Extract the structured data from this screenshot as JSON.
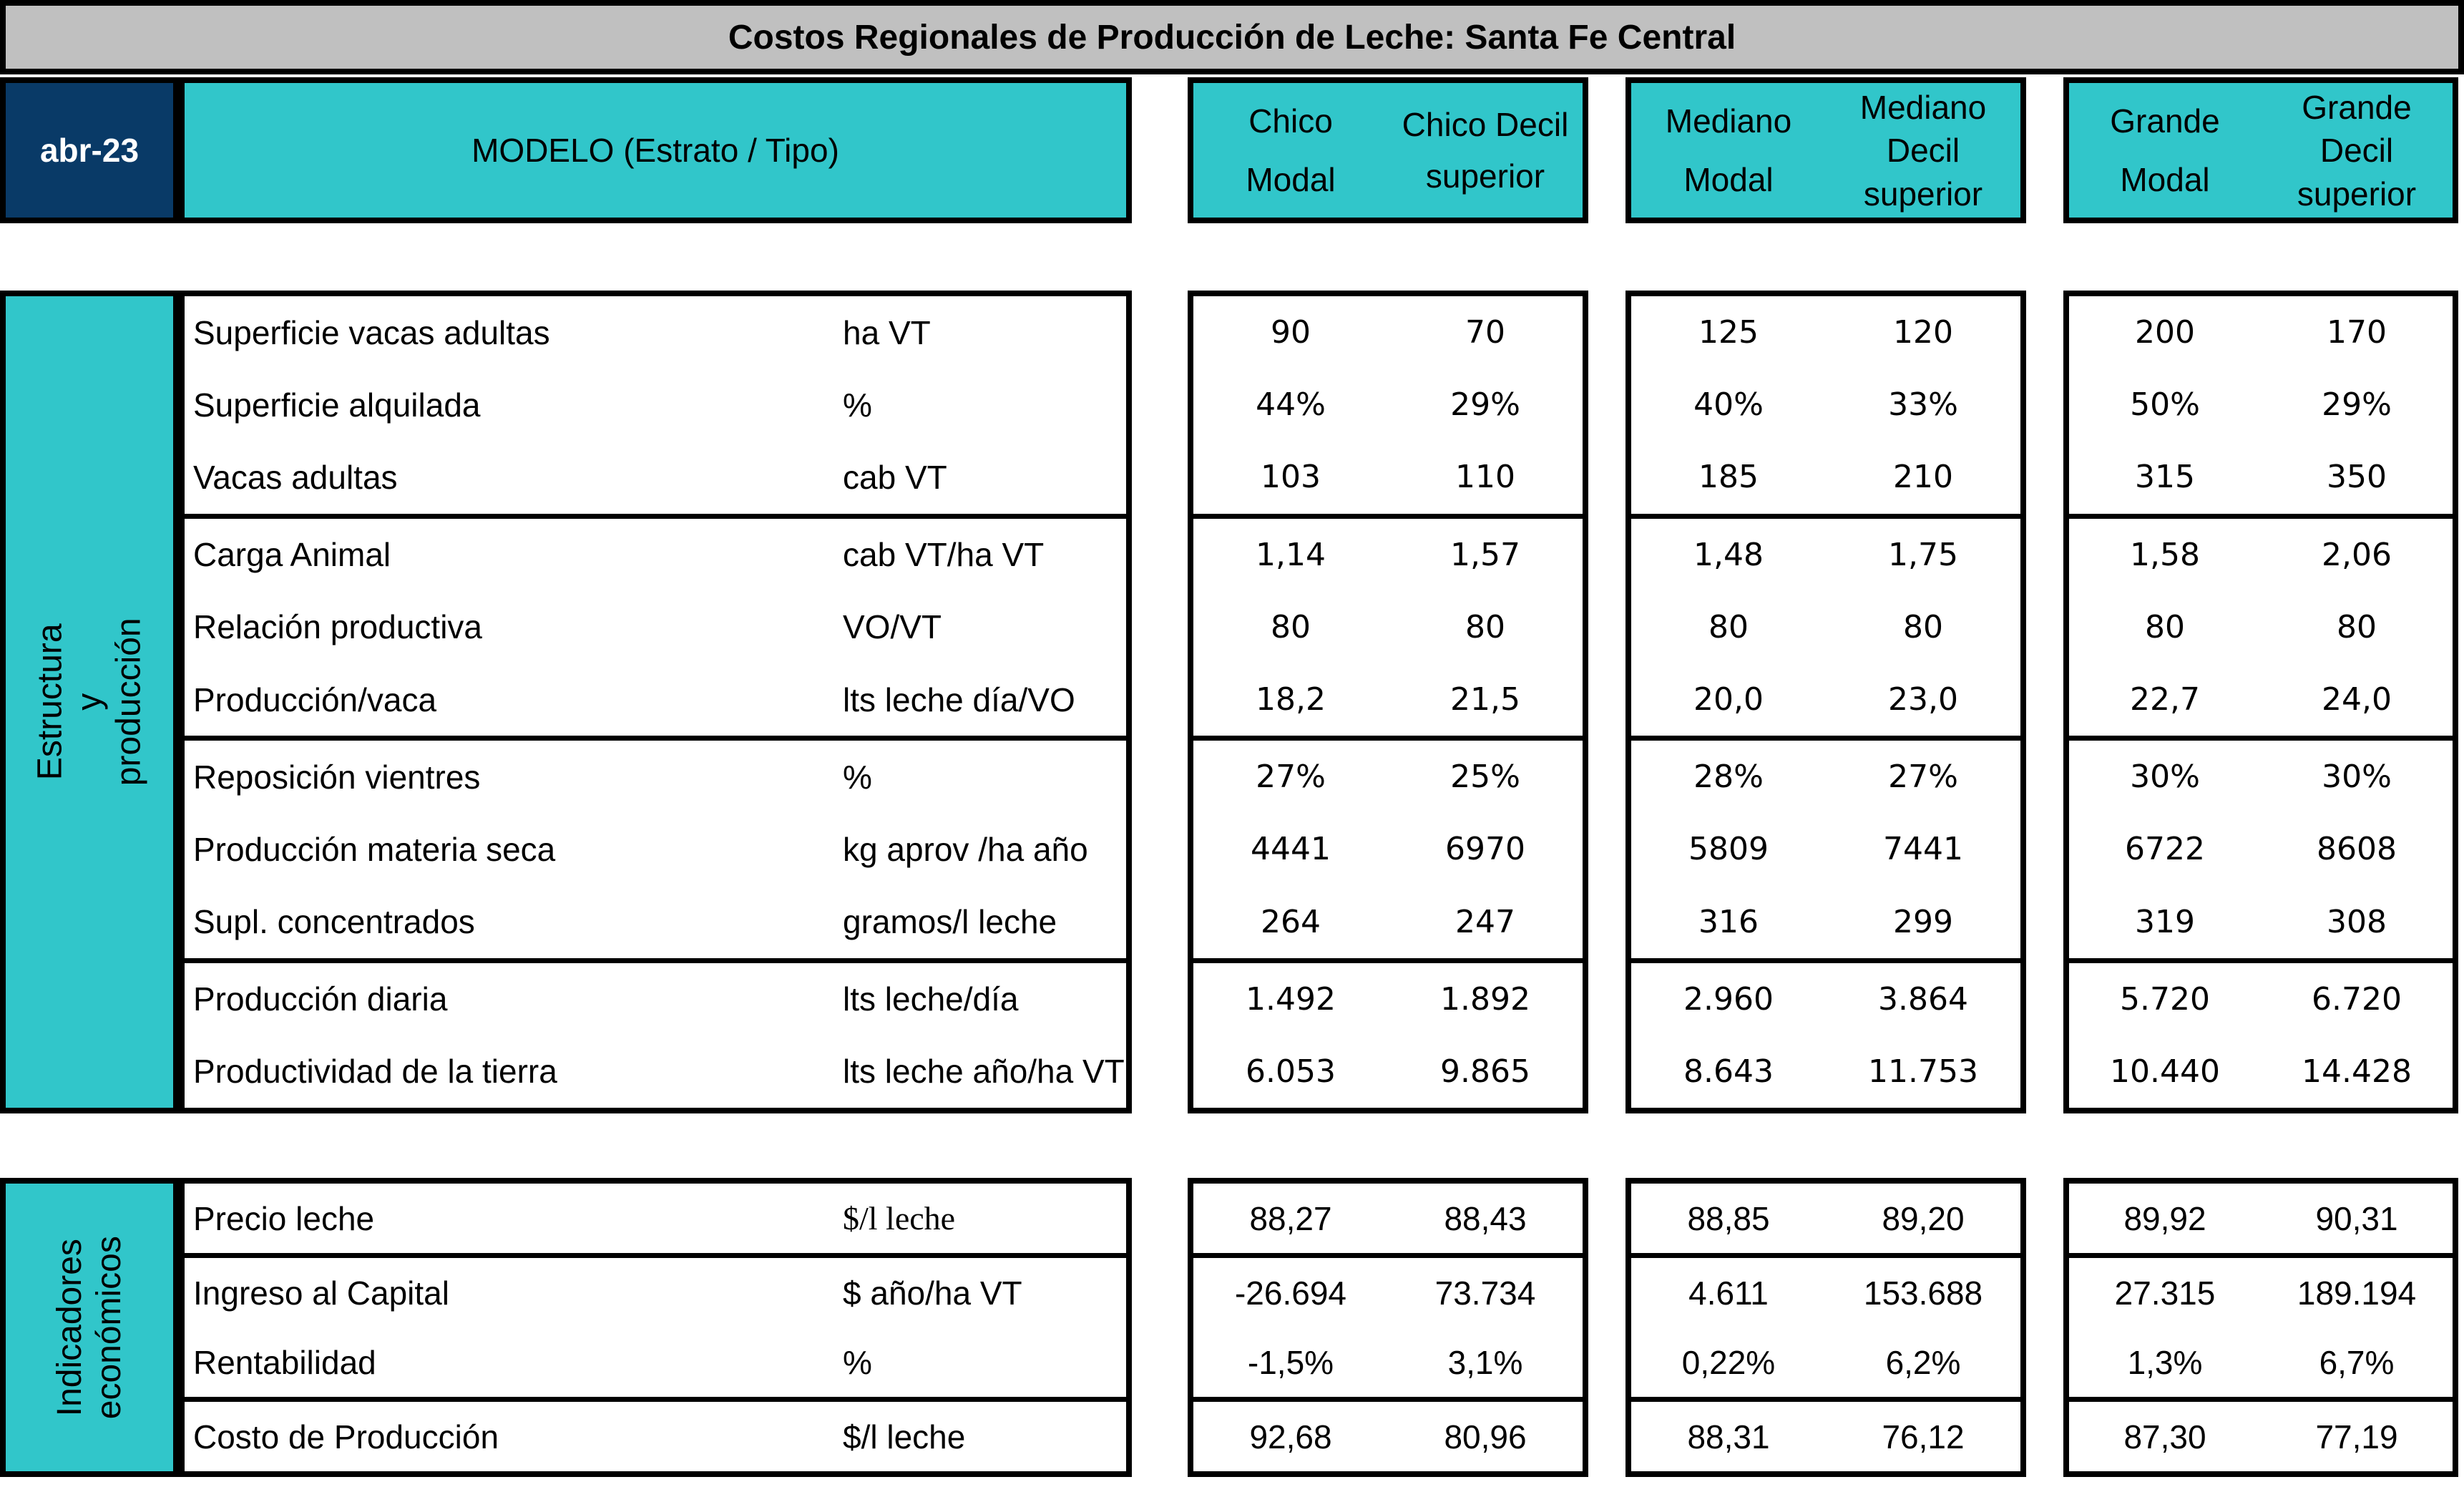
{
  "colors": {
    "teal": "#31C6CA",
    "navy": "#093A67",
    "title_gray": "#C0C0C0",
    "border": "#000000",
    "date_text": "#FFFFFF"
  },
  "title": "Costos Regionales de Producción de Leche: Santa Fe Central",
  "date_cell": "abr-23",
  "model_header": "MODELO (Estrato / Tipo)",
  "groups": [
    {
      "id": "chico",
      "modal_lines": [
        "Chico",
        "Modal"
      ],
      "decil_lines": [
        "Chico Decil",
        "superior"
      ]
    },
    {
      "id": "mediano",
      "modal_lines": [
        "Mediano",
        "Modal"
      ],
      "decil_lines": [
        "Mediano",
        "Decil",
        "superior"
      ]
    },
    {
      "id": "grande",
      "modal_lines": [
        "Grande",
        "Modal"
      ],
      "decil_lines": [
        "Grande",
        "Decil",
        "superior"
      ]
    }
  ],
  "sections": [
    {
      "label": "Estructura y producción",
      "groups_rows": [
        3,
        3,
        3,
        2
      ],
      "rows": [
        {
          "label": "Superficie vacas adultas",
          "unit": "ha VT",
          "values": [
            "90",
            "70",
            "125",
            "120",
            "200",
            "170"
          ]
        },
        {
          "label": "Superficie alquilada",
          "unit": "%",
          "values": [
            "44%",
            "29%",
            "40%",
            "33%",
            "50%",
            "29%"
          ]
        },
        {
          "label": "Vacas adultas",
          "unit": "cab VT",
          "values": [
            "103",
            "110",
            "185",
            "210",
            "315",
            "350"
          ]
        },
        {
          "label": "Carga Animal",
          "unit": "cab VT/ha VT",
          "values": [
            "1,14",
            "1,57",
            "1,48",
            "1,75",
            "1,58",
            "2,06"
          ]
        },
        {
          "label": "Relación productiva",
          "unit": "VO/VT",
          "values": [
            "80",
            "80",
            "80",
            "80",
            "80",
            "80"
          ]
        },
        {
          "label": "Producción/vaca",
          "unit": "lts leche día/VO",
          "values": [
            "18,2",
            "21,5",
            "20,0",
            "23,0",
            "22,7",
            "24,0"
          ]
        },
        {
          "label": "Reposición vientres",
          "unit": "%",
          "values": [
            "27%",
            "25%",
            "28%",
            "27%",
            "30%",
            "30%"
          ]
        },
        {
          "label": "Producción materia seca",
          "unit": "kg aprov /ha año",
          "values": [
            "4441",
            "6970",
            "5809",
            "7441",
            "6722",
            "8608"
          ]
        },
        {
          "label": "Supl. concentrados",
          "unit": "gramos/l leche",
          "values": [
            "264",
            "247",
            "316",
            "299",
            "319",
            "308"
          ]
        },
        {
          "label": "Producción diaria",
          "unit": "lts leche/día",
          "values": [
            "1.492",
            "1.892",
            "2.960",
            "3.864",
            "5.720",
            "6.720"
          ]
        },
        {
          "label": "Productividad de la tierra",
          "unit": "lts leche año/ha VT",
          "values": [
            "6.053",
            "9.865",
            "8.643",
            "11.753",
            "10.440",
            "14.428"
          ]
        }
      ]
    },
    {
      "label": "Indicadores\neconómicos",
      "groups_rows": [
        1,
        2,
        1
      ],
      "rows": [
        {
          "label": "Precio leche",
          "unit": "$/l leche",
          "unit_serif": true,
          "values": [
            "88,27",
            "88,43",
            "88,85",
            "89,20",
            "89,92",
            "90,31"
          ]
        },
        {
          "label": "Ingreso al Capital",
          "unit": "$ año/ha VT",
          "values": [
            "-26.694",
            "73.734",
            "4.611",
            "153.688",
            "27.315",
            "189.194"
          ]
        },
        {
          "label": "Rentabilidad",
          "unit": "%",
          "values": [
            "-1,5%",
            "3,1%",
            "0,22%",
            "6,2%",
            "1,3%",
            "6,7%"
          ]
        },
        {
          "label": "Costo de Producción",
          "unit": "$/l leche",
          "values": [
            "92,68",
            "80,96",
            "88,31",
            "76,12",
            "87,30",
            "77,19"
          ]
        }
      ]
    }
  ]
}
